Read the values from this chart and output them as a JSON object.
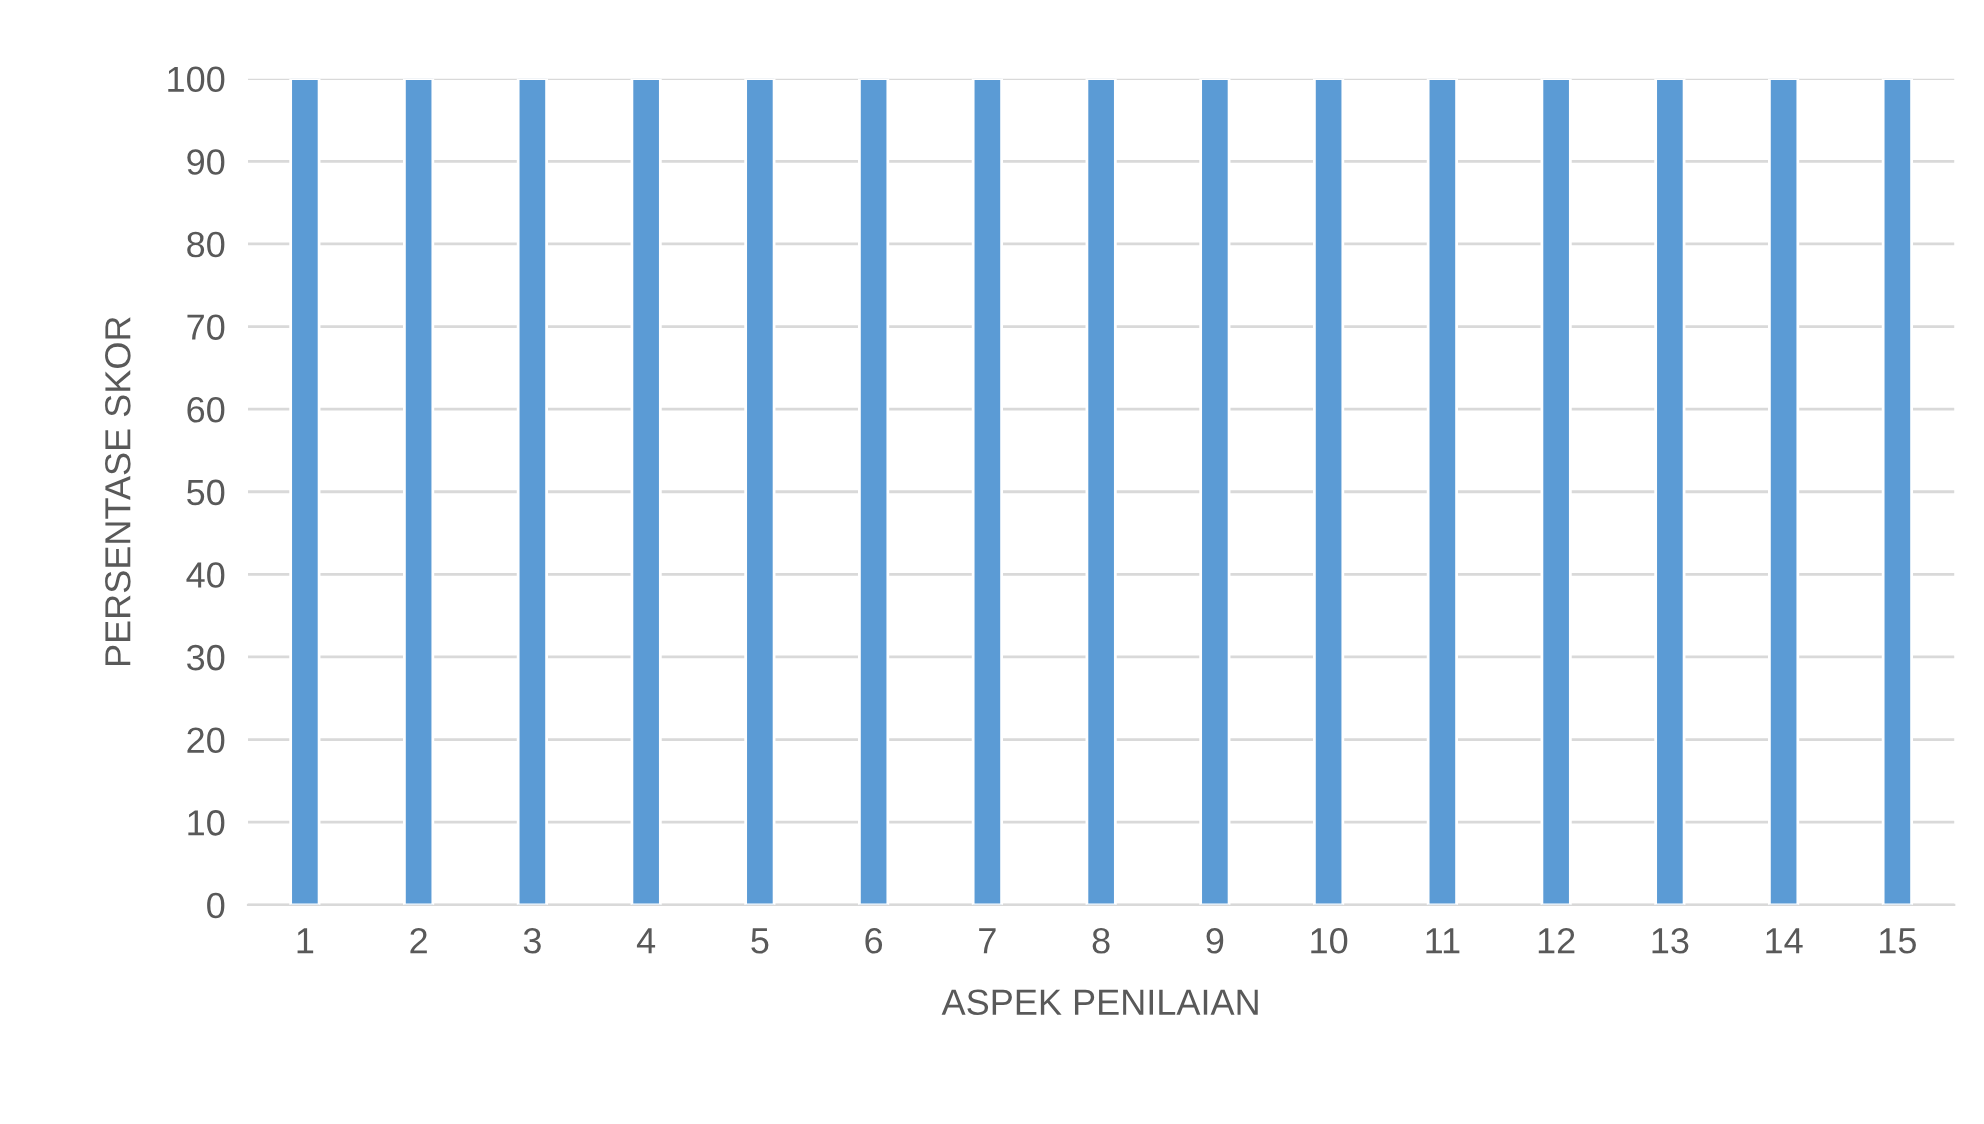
{
  "chart_data": {
    "type": "bar",
    "xlabel": "ASPEK PENILAIAN",
    "ylabel": "PERSENTASE SKOR",
    "categories": [
      "1",
      "2",
      "3",
      "4",
      "5",
      "6",
      "7",
      "8",
      "9",
      "10",
      "11",
      "12",
      "13",
      "14",
      "15"
    ],
    "values": [
      100,
      100,
      100,
      100,
      100,
      100,
      100,
      100,
      100,
      100,
      100,
      100,
      100,
      100,
      100
    ],
    "color": "#5b9bd5",
    "ylim": [
      0,
      100
    ],
    "yticks": [
      0,
      10,
      20,
      30,
      40,
      50,
      60,
      70,
      80,
      90,
      100
    ],
    "grid": "y",
    "legend": false
  }
}
